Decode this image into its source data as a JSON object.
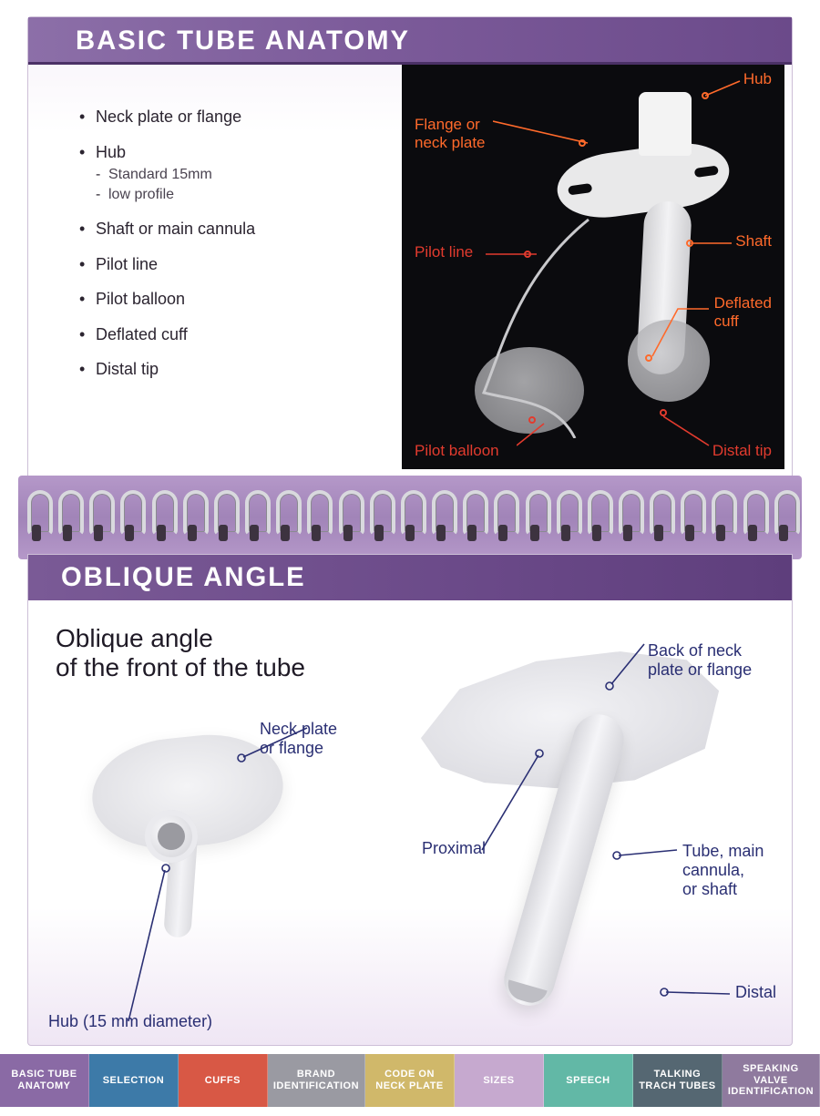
{
  "colors": {
    "title_bar_gradient": [
      "#8c6fa8",
      "#7c5b9a",
      "#6b4a8a"
    ],
    "title_text": "#ffffff",
    "page_border": "#cdbfd7",
    "body_text": "#2b2430",
    "sub_text": "#4a4350",
    "spiral_bg": [
      "#b598c9",
      "#a184b8"
    ],
    "callout_orange": "#ff6a2b",
    "callout_red": "#e23b2e",
    "callout_blue": "#2a2f73",
    "photo_bg": "#0b0b0e"
  },
  "typography": {
    "title_fontsize_pt": 22,
    "bullet_fontsize_pt": 14,
    "subbullet_fontsize_pt": 12,
    "subheading_fontsize_pt": 21,
    "callout_fontsize_pt": 13,
    "tab_fontsize_pt": 8
  },
  "top_page": {
    "title": "BASIC TUBE ANATOMY",
    "bullets": [
      {
        "label": "Neck plate or flange"
      },
      {
        "label": "Hub",
        "sub": [
          "Standard 15mm",
          "low profile"
        ]
      },
      {
        "label": "Shaft or main cannula"
      },
      {
        "label": "Pilot line"
      },
      {
        "label": "Pilot balloon"
      },
      {
        "label": "Deflated cuff"
      },
      {
        "label": "Distal tip"
      }
    ],
    "photo_callouts": {
      "hub": {
        "text": "Hub",
        "color": "#ff6a2b"
      },
      "flange": {
        "text": "Flange or\nneck plate",
        "color": "#ff6a2b"
      },
      "pilot_line": {
        "text": "Pilot line",
        "color": "#e23b2e"
      },
      "shaft": {
        "text": "Shaft",
        "color": "#ff6a2b"
      },
      "deflated_cuff": {
        "text": "Deflated\ncuff",
        "color": "#ff6a2b"
      },
      "pilot_balloon": {
        "text": "Pilot balloon",
        "color": "#e23b2e"
      },
      "distal_tip": {
        "text": "Distal tip",
        "color": "#e23b2e"
      }
    }
  },
  "spiral": {
    "ring_count": 25
  },
  "bottom_page": {
    "title": "OBLIQUE ANGLE",
    "subheading_line1": "Oblique angle",
    "subheading_line2": "of the front of the tube",
    "callouts": {
      "neck_plate": {
        "text": "Neck plate\nor flange"
      },
      "hub_diameter": {
        "text": "Hub (15 mm diameter)"
      },
      "back_flange": {
        "text": "Back of neck\nplate or flange"
      },
      "proximal": {
        "text": "Proximal"
      },
      "tube_shaft": {
        "text": "Tube, main\ncannula,\nor shaft"
      },
      "distal": {
        "text": "Distal"
      }
    }
  },
  "tabs": [
    {
      "label": "BASIC TUBE\nANATOMY",
      "bg": "#8a6aa5"
    },
    {
      "label": "SELECTION",
      "bg": "#3d7aa8"
    },
    {
      "label": "CUFFS",
      "bg": "#d85845"
    },
    {
      "label": "BRAND\nIDENTIFICATION",
      "bg": "#9a9aa2"
    },
    {
      "label": "CODE ON\nNECK PLATE",
      "bg": "#d0b86a"
    },
    {
      "label": "SIZES",
      "bg": "#c6a9cf"
    },
    {
      "label": "SPEECH",
      "bg": "#62b8a6"
    },
    {
      "label": "TALKING\nTRACH TUBES",
      "bg": "#556772"
    },
    {
      "label": "SPEAKING VALVE\nIDENTIFICATION",
      "bg": "#8f7a9e"
    }
  ]
}
